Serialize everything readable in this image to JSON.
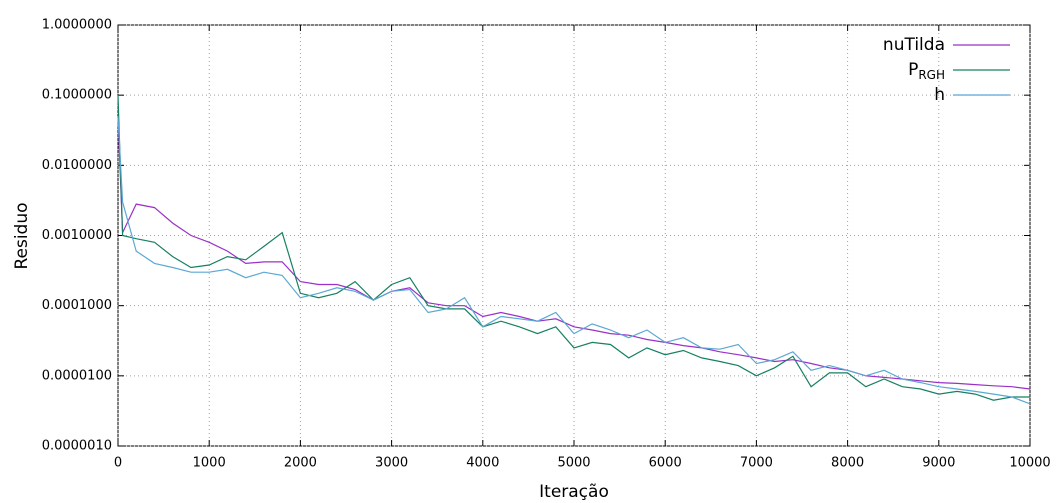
{
  "chart_data": {
    "type": "line",
    "log_y": true,
    "grid": true,
    "legend": "top-right",
    "ylabel": "Residuo",
    "xlabel": "Iteração",
    "xlim": [
      0,
      10000
    ],
    "xticks": [
      0,
      1000,
      2000,
      3000,
      4000,
      5000,
      6000,
      7000,
      8000,
      9000,
      10000
    ],
    "ylim": [
      1e-06,
      1
    ],
    "yticks": [
      {
        "value": 1e-06,
        "label": "0.0000010"
      },
      {
        "value": 1e-05,
        "label": "0.0000100"
      },
      {
        "value": 0.0001,
        "label": "0.0001000"
      },
      {
        "value": 0.001,
        "label": "0.0010000"
      },
      {
        "value": 0.01,
        "label": "0.0100000"
      },
      {
        "value": 0.1,
        "label": "0.1000000"
      },
      {
        "value": 1,
        "label": "1.0000000"
      }
    ],
    "x": [
      0,
      50,
      200,
      400,
      600,
      800,
      1000,
      1200,
      1400,
      1600,
      1800,
      2000,
      2200,
      2400,
      2600,
      2800,
      3000,
      3200,
      3400,
      3600,
      3800,
      4000,
      4200,
      4400,
      4600,
      4800,
      5000,
      5200,
      5400,
      5600,
      5800,
      6000,
      6200,
      6400,
      6600,
      6800,
      7000,
      7200,
      7400,
      7600,
      7800,
      8000,
      8200,
      8400,
      8600,
      8800,
      9000,
      9200,
      9400,
      9600,
      9800,
      10000
    ],
    "series": [
      {
        "name": "nuTilda",
        "color": "#9a30c8",
        "values": [
          0.05,
          0.0011,
          0.0028,
          0.0025,
          0.0015,
          0.001,
          0.0008,
          0.0006,
          0.0004,
          0.00042,
          0.00042,
          0.00022,
          0.0002,
          0.0002,
          0.00017,
          0.00012,
          0.00016,
          0.00018,
          0.00011,
          0.0001,
          0.0001,
          7e-05,
          8e-05,
          7e-05,
          6e-05,
          6.5e-05,
          5e-05,
          4.5e-05,
          4e-05,
          3.8e-05,
          3.3e-05,
          3e-05,
          2.7e-05,
          2.5e-05,
          2.2e-05,
          2e-05,
          1.8e-05,
          1.6e-05,
          1.7e-05,
          1.5e-05,
          1.3e-05,
          1.2e-05,
          1e-05,
          9.5e-06,
          9e-06,
          8.5e-06,
          8e-06,
          7.8e-06,
          7.5e-06,
          7.2e-06,
          7e-06,
          6.5e-06
        ]
      },
      {
        "name": "P_RGH",
        "color": "#168062",
        "values": [
          0.1,
          0.001,
          0.0009,
          0.0008,
          0.0005,
          0.00035,
          0.00038,
          0.0005,
          0.00045,
          0.0007,
          0.0011,
          0.00015,
          0.00013,
          0.00015,
          0.00022,
          0.00012,
          0.0002,
          0.00025,
          0.0001,
          9e-05,
          9e-05,
          5e-05,
          6e-05,
          5e-05,
          4e-05,
          5e-05,
          2.5e-05,
          3e-05,
          2.8e-05,
          1.8e-05,
          2.5e-05,
          2e-05,
          2.3e-05,
          1.8e-05,
          1.6e-05,
          1.4e-05,
          1e-05,
          1.3e-05,
          1.9e-05,
          7e-06,
          1.1e-05,
          1.1e-05,
          7e-06,
          9e-06,
          7e-06,
          6.5e-06,
          5.5e-06,
          6e-06,
          5.5e-06,
          4.5e-06,
          5e-06,
          5e-06
        ]
      },
      {
        "name": "h",
        "color": "#5aa8d4",
        "values": [
          0.05,
          0.003,
          0.0006,
          0.0004,
          0.00035,
          0.0003,
          0.0003,
          0.00033,
          0.00025,
          0.0003,
          0.00027,
          0.00013,
          0.00015,
          0.00018,
          0.00016,
          0.00012,
          0.00016,
          0.00017,
          8e-05,
          9e-05,
          0.00013,
          5e-05,
          7e-05,
          6.5e-05,
          6e-05,
          8e-05,
          4e-05,
          5.5e-05,
          4.5e-05,
          3.5e-05,
          4.5e-05,
          3e-05,
          3.5e-05,
          2.5e-05,
          2.4e-05,
          2.8e-05,
          1.5e-05,
          1.7e-05,
          2.2e-05,
          1.2e-05,
          1.4e-05,
          1.2e-05,
          1e-05,
          1.2e-05,
          9e-06,
          8e-06,
          7e-06,
          6.5e-06,
          6e-06,
          5.5e-06,
          5e-06,
          4e-06
        ]
      }
    ]
  }
}
